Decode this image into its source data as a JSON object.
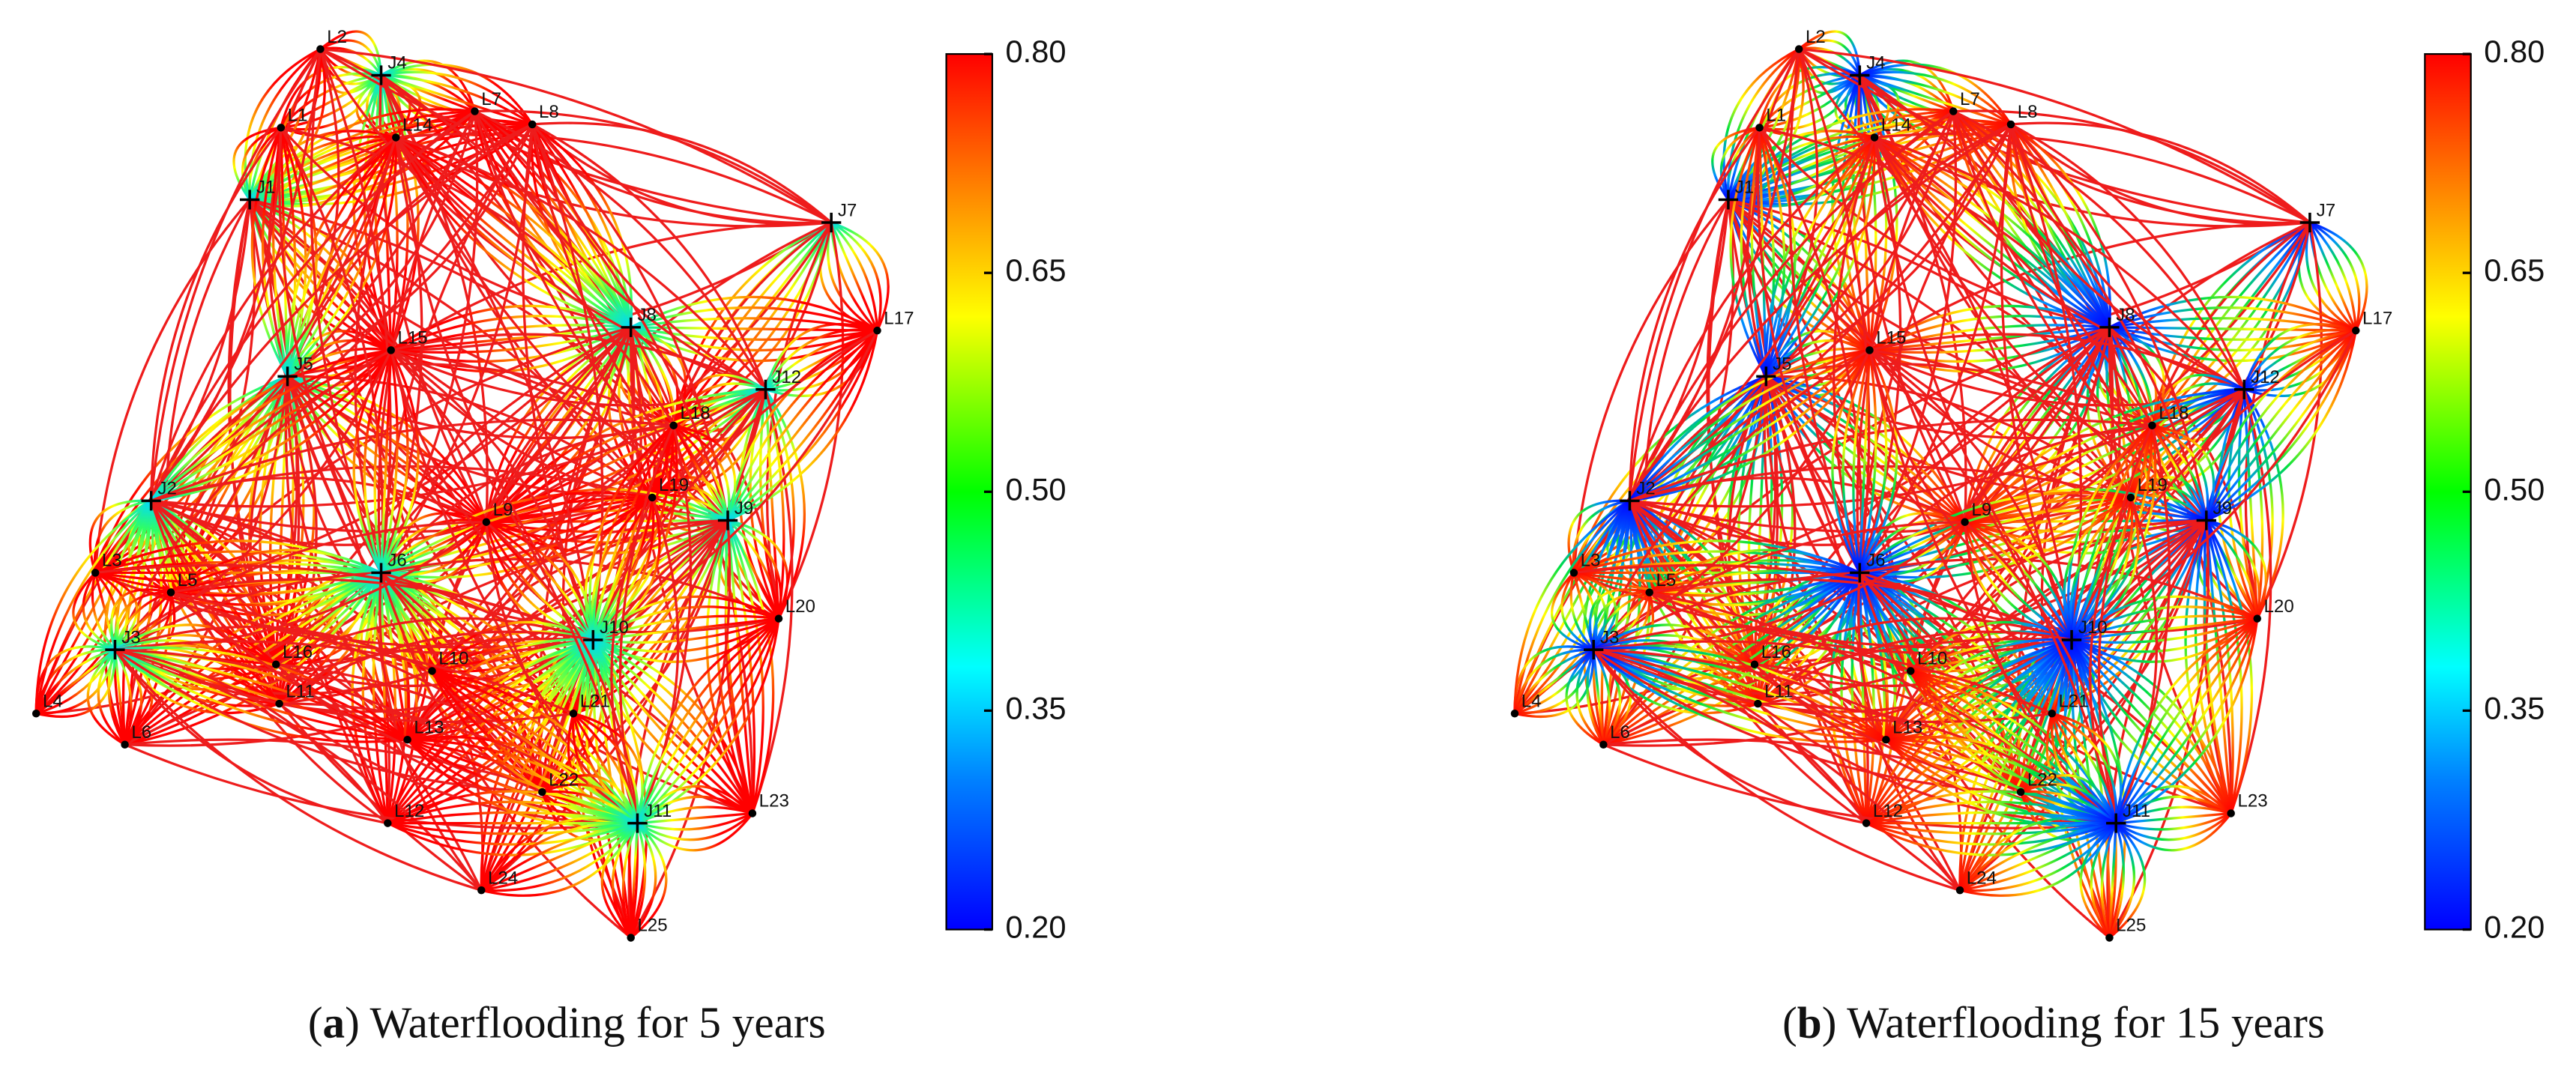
{
  "panels": [
    {
      "caption": [
        "(",
        "a",
        ") Waterflooding for 5 years"
      ],
      "wells": [
        "L2",
        "J4",
        "L7",
        "L8",
        "L1",
        "L14",
        "J1",
        "J7",
        "L17",
        "J8",
        "L15",
        "J5",
        "J12",
        "L18",
        "J2",
        "L19",
        "J9",
        "L9",
        "L3",
        "L5",
        "J6",
        "J10",
        "L20",
        "J3",
        "L16",
        "L10",
        "L11",
        "L4",
        "L21",
        "L6",
        "L13",
        "L22",
        "J11",
        "L23",
        "L12",
        "L24",
        "L25"
      ],
      "colorbar": {
        "lim": [
          0.2,
          0.8
        ],
        "ticks": [
          {
            "value": 0.2,
            "label": "0.20"
          },
          {
            "value": 0.35,
            "label": "0.35"
          },
          {
            "value": 0.5,
            "label": "0.50"
          },
          {
            "value": 0.65,
            "label": "0.65"
          },
          {
            "value": 0.8,
            "label": "0.80"
          }
        ]
      }
    },
    {
      "caption": [
        "(",
        "b",
        ") Waterflooding for 15 years"
      ],
      "wells": [
        "L2",
        "J4",
        "L7",
        "L8",
        "L1",
        "L14",
        "J1",
        "J7",
        "L17",
        "J8",
        "L15",
        "J5",
        "J12",
        "L18",
        "J2",
        "L19",
        "J9",
        "L9",
        "L3",
        "L5",
        "J6",
        "J10",
        "L20",
        "J3",
        "L16",
        "L10",
        "L11",
        "L4",
        "L21",
        "L6",
        "L13",
        "L22",
        "J11",
        "L23",
        "L12",
        "L24",
        "L25"
      ],
      "colorbar": {
        "lim": [
          0.2,
          0.8
        ],
        "ticks": [
          {
            "value": 0.2,
            "label": "0.20"
          },
          {
            "value": 0.35,
            "label": "0.35"
          },
          {
            "value": 0.5,
            "label": "0.50"
          },
          {
            "value": 0.65,
            "label": "0.65"
          },
          {
            "value": 0.8,
            "label": "0.80"
          }
        ]
      }
    }
  ]
}
